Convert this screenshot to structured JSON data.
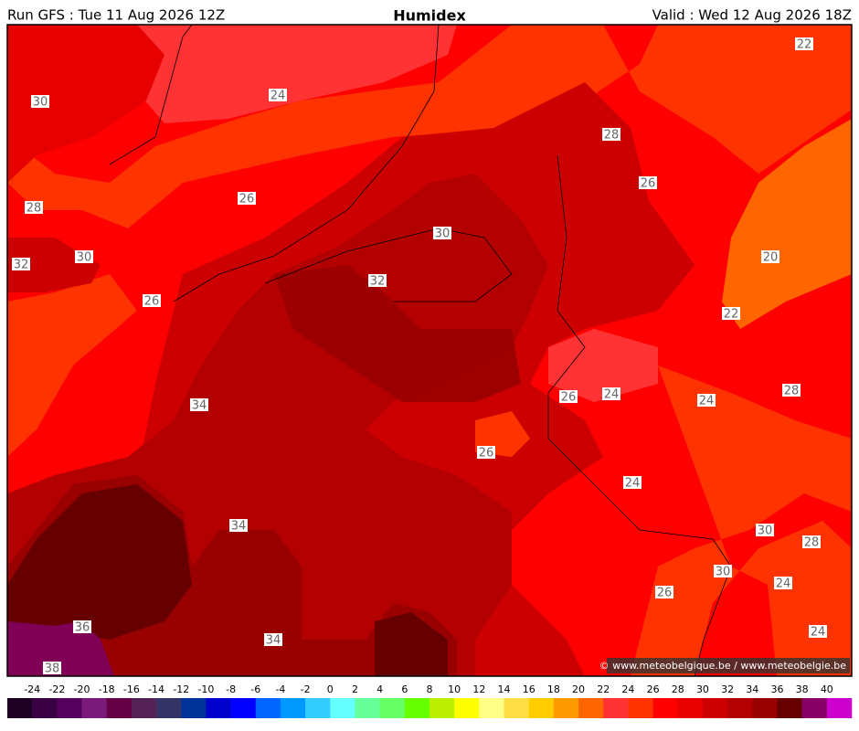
{
  "header": {
    "run": "Run GFS : Tue 11 Aug 2026 12Z",
    "title": "Humidex",
    "valid": "Valid : Wed 12 Aug 2026 18Z"
  },
  "map": {
    "contour_labels": [
      24,
      22,
      30,
      28,
      26,
      26,
      28,
      30,
      30,
      32,
      20,
      32,
      26,
      22,
      34,
      26,
      24,
      24,
      28,
      26,
      24,
      34,
      30,
      28,
      30,
      24,
      26,
      36,
      24,
      34,
      38
    ],
    "copyright": "© www.meteobelgique.be / www.meteobelgie.be"
  },
  "colorbar": {
    "ticks": [
      -24,
      -22,
      -20,
      -18,
      -16,
      -14,
      -12,
      -10,
      -8,
      -6,
      -4,
      -2,
      0,
      2,
      4,
      6,
      8,
      10,
      12,
      14,
      16,
      18,
      20,
      22,
      24,
      26,
      28,
      30,
      32,
      34,
      36,
      38,
      40
    ],
    "colors": [
      "#1e0022",
      "#3a0044",
      "#55005f",
      "#7a1a7a",
      "#660044",
      "#552255",
      "#333366",
      "#003399",
      "#0000cc",
      "#0000ff",
      "#0066ff",
      "#0099ff",
      "#33ccff",
      "#66ffff",
      "#66ff99",
      "#66ff66",
      "#66ff00",
      "#bbee00",
      "#ffff00",
      "#ffff88",
      "#ffdd44",
      "#ffcc00",
      "#ff9900",
      "#ff6600",
      "#ff3333",
      "#ff3300",
      "#ff0000",
      "#e60000",
      "#cc0000",
      "#b30000",
      "#990000",
      "#660000",
      "#880066",
      "#cc00cc"
    ]
  }
}
